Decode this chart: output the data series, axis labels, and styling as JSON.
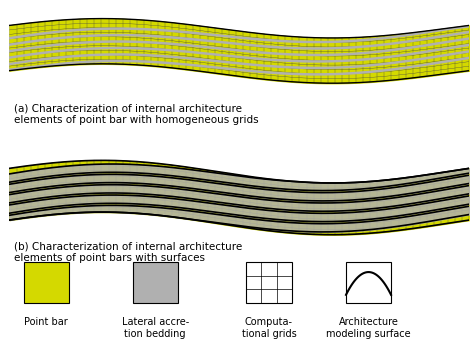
{
  "bg_color": "#ffffff",
  "point_bar_color": "#d4d900",
  "lateral_accretion_color": "#b0b0b0",
  "grid_color": "#333333",
  "surface_color": "#000000",
  "label_a": "(a) Characterization of internal architecture\nelements of point bar with homogeneous grids",
  "label_b": "(b) Characterization of internal architecture\nelements of point bars with surfaces",
  "legend_items": [
    "Point bar",
    "Lateral accre-\ntion bedding",
    "Computa-\ntional grids",
    "Architecture\nmodeling surface"
  ]
}
